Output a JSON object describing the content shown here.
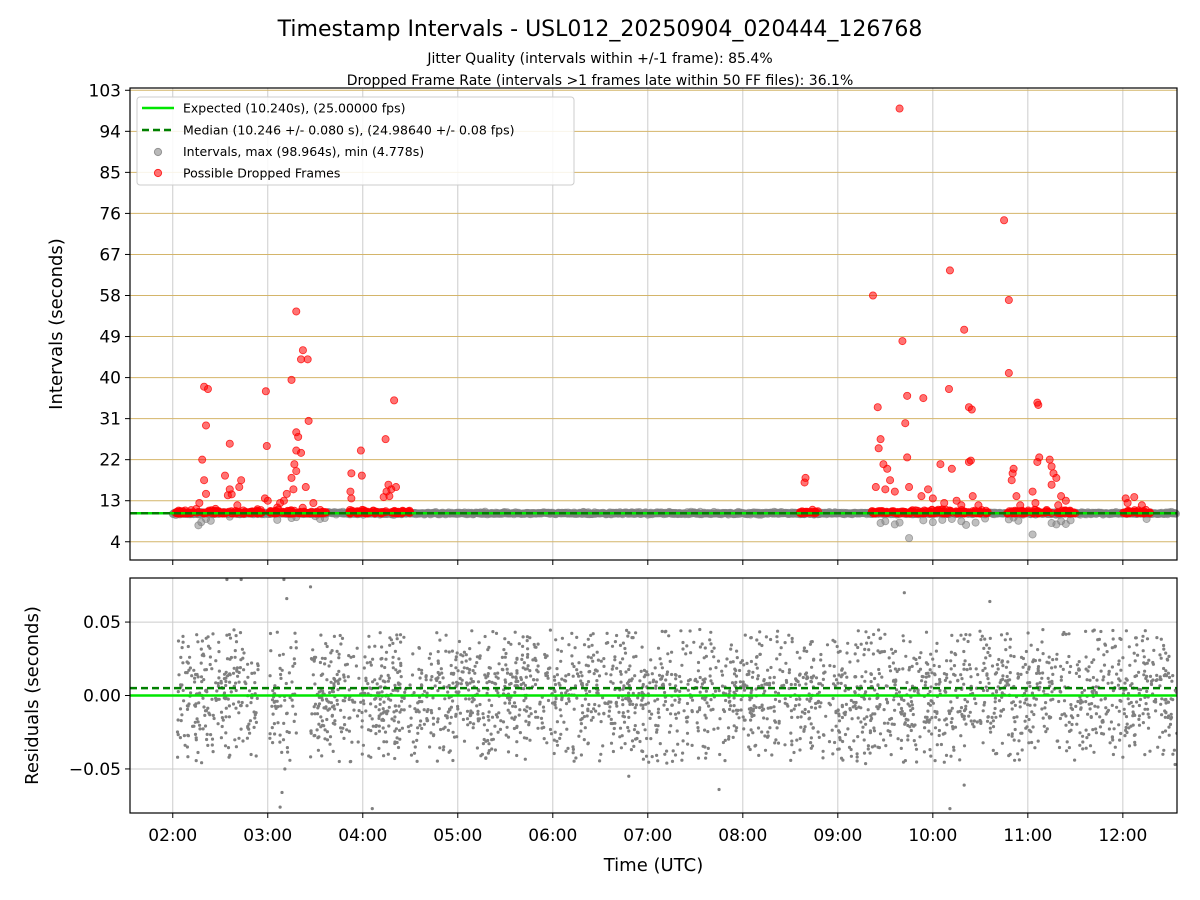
{
  "title": "Timestamp Intervals - USL012_20250904_020444_126768",
  "subtitle_1": "Jitter Quality (intervals within +/-1 frame): 85.4%",
  "subtitle_2": "Dropped Frame Rate (intervals >1 frames late within 50 FF files): 36.1%",
  "colors": {
    "expected": "#00e600",
    "median": "#008000",
    "intervals": "#808080",
    "dropped": "#ff0000",
    "hgrid": "#d4b56a",
    "vgrid": "#cccccc"
  },
  "chart_data": [
    {
      "type": "scatter",
      "name": "intervals-panel",
      "ylabel": "Intervals (seconds)",
      "ylim": [
        0,
        103.5
      ],
      "yticks": [
        4,
        13,
        22,
        31,
        40,
        49,
        58,
        67,
        76,
        85,
        94,
        103
      ],
      "xlim_hours": [
        1.55,
        12.57
      ],
      "grid": "on",
      "legend_placement": "top-left",
      "legend": [
        {
          "kind": "line-solid",
          "label": "Expected (10.240s), (25.00000 fps)"
        },
        {
          "kind": "line-dashed",
          "label": "Median (10.246 +/- 0.080 s), (24.98640 +/- 0.08 fps)"
        },
        {
          "kind": "marker-gray",
          "label": "Intervals, max (98.964s), min (4.778s)"
        },
        {
          "kind": "marker-red",
          "label": "Possible Dropped Frames"
        }
      ],
      "expected_value": 10.24,
      "median_value": 10.246,
      "interval_clusters": [
        {
          "start": 2.03,
          "end": 2.95
        },
        {
          "start": 3.0,
          "end": 3.62
        },
        {
          "start": 3.85,
          "end": 4.5
        },
        {
          "start": 8.6,
          "end": 8.8
        },
        {
          "start": 9.35,
          "end": 10.6
        },
        {
          "start": 10.78,
          "end": 11.5
        },
        {
          "start": 12.0,
          "end": 12.3
        }
      ],
      "gray_outliers": [
        {
          "x": 2.27,
          "y": 7.6
        },
        {
          "x": 2.3,
          "y": 8.3
        },
        {
          "x": 2.35,
          "y": 9.0
        },
        {
          "x": 2.4,
          "y": 8.6
        },
        {
          "x": 2.6,
          "y": 9.5
        },
        {
          "x": 3.1,
          "y": 8.8
        },
        {
          "x": 3.25,
          "y": 9.2
        },
        {
          "x": 3.3,
          "y": 9.4
        },
        {
          "x": 3.5,
          "y": 9.6
        },
        {
          "x": 3.55,
          "y": 9.0
        },
        {
          "x": 3.6,
          "y": 9.2
        },
        {
          "x": 9.45,
          "y": 8.1
        },
        {
          "x": 9.5,
          "y": 8.5
        },
        {
          "x": 9.6,
          "y": 7.8
        },
        {
          "x": 9.65,
          "y": 8.2
        },
        {
          "x": 9.75,
          "y": 4.8
        },
        {
          "x": 9.9,
          "y": 8.7
        },
        {
          "x": 10.0,
          "y": 8.3
        },
        {
          "x": 10.1,
          "y": 8.8
        },
        {
          "x": 10.2,
          "y": 9.0
        },
        {
          "x": 10.3,
          "y": 8.5
        },
        {
          "x": 10.35,
          "y": 7.7
        },
        {
          "x": 10.45,
          "y": 8.2
        },
        {
          "x": 10.55,
          "y": 9.1
        },
        {
          "x": 10.8,
          "y": 8.9
        },
        {
          "x": 10.85,
          "y": 9.3
        },
        {
          "x": 10.9,
          "y": 8.6
        },
        {
          "x": 11.05,
          "y": 5.6
        },
        {
          "x": 11.25,
          "y": 8.1
        },
        {
          "x": 11.3,
          "y": 7.8
        },
        {
          "x": 11.35,
          "y": 8.5
        },
        {
          "x": 11.4,
          "y": 7.9
        },
        {
          "x": 11.45,
          "y": 8.7
        },
        {
          "x": 12.25,
          "y": 9.0
        }
      ],
      "dropped_frames": [
        {
          "x": 2.33,
          "y": 38
        },
        {
          "x": 2.37,
          "y": 37.5
        },
        {
          "x": 2.35,
          "y": 29.5
        },
        {
          "x": 2.31,
          "y": 22
        },
        {
          "x": 2.33,
          "y": 17.5
        },
        {
          "x": 2.35,
          "y": 14.5
        },
        {
          "x": 2.28,
          "y": 12.5
        },
        {
          "x": 2.45,
          "y": 11.2
        },
        {
          "x": 2.55,
          "y": 18.5
        },
        {
          "x": 2.58,
          "y": 14.2
        },
        {
          "x": 2.6,
          "y": 15.5
        },
        {
          "x": 2.62,
          "y": 14.4
        },
        {
          "x": 2.6,
          "y": 25.5
        },
        {
          "x": 2.7,
          "y": 16
        },
        {
          "x": 2.72,
          "y": 17.5
        },
        {
          "x": 2.68,
          "y": 12
        },
        {
          "x": 2.98,
          "y": 37
        },
        {
          "x": 2.99,
          "y": 25
        },
        {
          "x": 2.97,
          "y": 13.5
        },
        {
          "x": 3.0,
          "y": 13
        },
        {
          "x": 3.1,
          "y": 11.5
        },
        {
          "x": 3.13,
          "y": 12.5
        },
        {
          "x": 3.17,
          "y": 13
        },
        {
          "x": 3.2,
          "y": 14.5
        },
        {
          "x": 3.25,
          "y": 39.5
        },
        {
          "x": 3.3,
          "y": 54.5
        },
        {
          "x": 3.37,
          "y": 46
        },
        {
          "x": 3.35,
          "y": 44
        },
        {
          "x": 3.42,
          "y": 44
        },
        {
          "x": 3.3,
          "y": 28
        },
        {
          "x": 3.32,
          "y": 27
        },
        {
          "x": 3.3,
          "y": 24
        },
        {
          "x": 3.28,
          "y": 21
        },
        {
          "x": 3.3,
          "y": 19.5
        },
        {
          "x": 3.25,
          "y": 18
        },
        {
          "x": 3.27,
          "y": 15.5
        },
        {
          "x": 3.35,
          "y": 23.5
        },
        {
          "x": 3.4,
          "y": 16
        },
        {
          "x": 3.43,
          "y": 30.5
        },
        {
          "x": 3.48,
          "y": 12.5
        },
        {
          "x": 3.88,
          "y": 19
        },
        {
          "x": 3.87,
          "y": 15
        },
        {
          "x": 3.88,
          "y": 13.5
        },
        {
          "x": 3.98,
          "y": 24
        },
        {
          "x": 3.99,
          "y": 18.5
        },
        {
          "x": 4.24,
          "y": 26.5
        },
        {
          "x": 4.33,
          "y": 35
        },
        {
          "x": 4.27,
          "y": 16.5
        },
        {
          "x": 4.3,
          "y": 15.5
        },
        {
          "x": 4.28,
          "y": 14
        },
        {
          "x": 4.22,
          "y": 13.8
        },
        {
          "x": 4.35,
          "y": 16
        },
        {
          "x": 4.25,
          "y": 15
        },
        {
          "x": 8.65,
          "y": 17
        },
        {
          "x": 8.66,
          "y": 18
        },
        {
          "x": 9.37,
          "y": 58
        },
        {
          "x": 9.42,
          "y": 33.5
        },
        {
          "x": 9.45,
          "y": 26.5
        },
        {
          "x": 9.43,
          "y": 24.5
        },
        {
          "x": 9.48,
          "y": 21
        },
        {
          "x": 9.52,
          "y": 20
        },
        {
          "x": 9.4,
          "y": 16
        },
        {
          "x": 9.5,
          "y": 15.5
        },
        {
          "x": 9.55,
          "y": 17.5
        },
        {
          "x": 9.6,
          "y": 15
        },
        {
          "x": 9.65,
          "y": 99
        },
        {
          "x": 9.68,
          "y": 48
        },
        {
          "x": 9.73,
          "y": 36
        },
        {
          "x": 9.71,
          "y": 30
        },
        {
          "x": 9.73,
          "y": 22.5
        },
        {
          "x": 9.75,
          "y": 16
        },
        {
          "x": 9.9,
          "y": 35.5
        },
        {
          "x": 9.88,
          "y": 14
        },
        {
          "x": 9.95,
          "y": 15.5
        },
        {
          "x": 10.0,
          "y": 13.5
        },
        {
          "x": 10.08,
          "y": 21
        },
        {
          "x": 10.12,
          "y": 12.5
        },
        {
          "x": 10.18,
          "y": 63.5
        },
        {
          "x": 10.17,
          "y": 37.5
        },
        {
          "x": 10.2,
          "y": 20
        },
        {
          "x": 10.25,
          "y": 13
        },
        {
          "x": 10.3,
          "y": 12
        },
        {
          "x": 10.33,
          "y": 50.5
        },
        {
          "x": 10.38,
          "y": 33.5
        },
        {
          "x": 10.41,
          "y": 33
        },
        {
          "x": 10.38,
          "y": 21.5
        },
        {
          "x": 10.4,
          "y": 21.8
        },
        {
          "x": 10.42,
          "y": 14
        },
        {
          "x": 10.48,
          "y": 12
        },
        {
          "x": 10.75,
          "y": 74.5
        },
        {
          "x": 10.8,
          "y": 57
        },
        {
          "x": 10.8,
          "y": 41
        },
        {
          "x": 10.85,
          "y": 20
        },
        {
          "x": 10.84,
          "y": 19
        },
        {
          "x": 10.83,
          "y": 17.5
        },
        {
          "x": 10.88,
          "y": 14
        },
        {
          "x": 10.92,
          "y": 12
        },
        {
          "x": 11.1,
          "y": 34.5
        },
        {
          "x": 11.11,
          "y": 34
        },
        {
          "x": 11.12,
          "y": 22.5
        },
        {
          "x": 11.1,
          "y": 21.5
        },
        {
          "x": 11.05,
          "y": 15
        },
        {
          "x": 11.08,
          "y": 12.5
        },
        {
          "x": 11.23,
          "y": 22
        },
        {
          "x": 11.25,
          "y": 20.5
        },
        {
          "x": 11.27,
          "y": 19
        },
        {
          "x": 11.25,
          "y": 16.5
        },
        {
          "x": 11.3,
          "y": 18
        },
        {
          "x": 11.35,
          "y": 14
        },
        {
          "x": 11.32,
          "y": 12
        },
        {
          "x": 11.4,
          "y": 13
        },
        {
          "x": 12.03,
          "y": 13.5
        },
        {
          "x": 12.05,
          "y": 12.5
        },
        {
          "x": 12.12,
          "y": 13.8
        },
        {
          "x": 12.2,
          "y": 12
        }
      ]
    },
    {
      "type": "scatter",
      "name": "residuals-panel",
      "ylabel": "Residuals (seconds)",
      "xlabel": "Time (UTC)",
      "ylim": [
        -0.08,
        0.08
      ],
      "yticks": [
        0.05,
        0.0,
        -0.05
      ],
      "ytick_labels": [
        "0.05",
        "0.00",
        "−0.05"
      ],
      "xticks_hours": [
        2,
        3,
        4,
        5,
        6,
        7,
        8,
        9,
        10,
        11,
        12
      ],
      "xtick_labels": [
        "02:00",
        "03:00",
        "04:00",
        "05:00",
        "06:00",
        "07:00",
        "08:00",
        "09:00",
        "10:00",
        "11:00",
        "12:00"
      ],
      "xlim_hours": [
        1.55,
        12.57
      ],
      "grid": "on",
      "expected_residual": 0.0,
      "median_residual": 0.005,
      "residual_sigma": 0.022,
      "residual_gaps": [
        [
          2.9,
          3.02
        ],
        [
          3.3,
          3.45
        ]
      ]
    }
  ]
}
